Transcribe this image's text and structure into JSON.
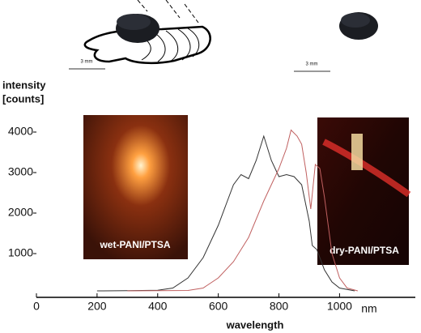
{
  "chart_data": {
    "type": "line",
    "y_label_lines": [
      "intensity",
      "[counts]"
    ],
    "x_label": "wavelength",
    "x_unit": "nm",
    "xlim": [
      0,
      1250
    ],
    "ylim": [
      0,
      5000
    ],
    "xticks": [
      0,
      200,
      400,
      600,
      800,
      1000
    ],
    "yticks": [
      1000,
      2000,
      3000,
      4000
    ],
    "series": [
      {
        "name": "wet-PANI/PTSA",
        "color": "#333333",
        "x": [
          200,
          300,
          400,
          450,
          500,
          550,
          600,
          625,
          650,
          675,
          700,
          725,
          750,
          775,
          800,
          825,
          850,
          875,
          900,
          910,
          925,
          950,
          975,
          1000,
          1050
        ],
        "values": [
          80,
          85,
          95,
          150,
          400,
          900,
          1700,
          2200,
          2700,
          2950,
          2850,
          3300,
          3900,
          3300,
          2900,
          2950,
          2900,
          2700,
          1800,
          1200,
          1100,
          600,
          300,
          150,
          80
        ]
      },
      {
        "name": "dry-PANI/PTSA",
        "color": "#c06060",
        "x": [
          300,
          500,
          550,
          600,
          650,
          700,
          750,
          775,
          800,
          825,
          840,
          860,
          875,
          890,
          905,
          920,
          935,
          950,
          975,
          1000,
          1025,
          1060
        ],
        "values": [
          80,
          90,
          150,
          400,
          800,
          1400,
          2300,
          2700,
          3100,
          3600,
          4050,
          3900,
          3700,
          3000,
          2100,
          3200,
          3100,
          2400,
          1000,
          400,
          150,
          80
        ]
      }
    ],
    "scale_bars": [
      "3 mm",
      "3 mm"
    ]
  }
}
